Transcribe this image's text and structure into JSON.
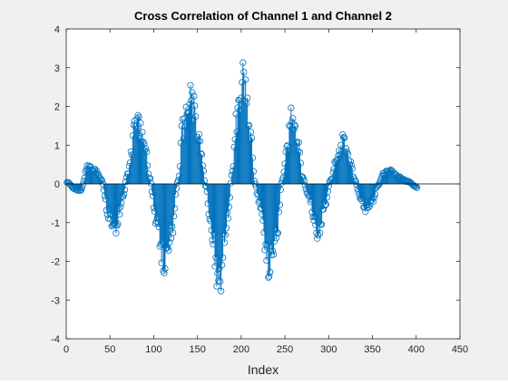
{
  "chart_data": {
    "type": "stem",
    "title": "Cross Correlation of Channel 1 and Channel 2",
    "xlabel": "Index",
    "ylabel": "",
    "xlim": [
      0,
      450
    ],
    "ylim": [
      -4,
      4
    ],
    "xticks": [
      0,
      50,
      100,
      150,
      200,
      250,
      300,
      350,
      400,
      450
    ],
    "yticks": [
      -4,
      -3,
      -2,
      -1,
      0,
      1,
      2,
      3,
      4
    ],
    "grid": false,
    "series_color": "#0072BD",
    "n_points": 401,
    "envelope_keypoints": [
      [
        1,
        0.05
      ],
      [
        10,
        -0.15
      ],
      [
        16,
        -0.2
      ],
      [
        25,
        0.5
      ],
      [
        33,
        0.4
      ],
      [
        40,
        0.15
      ],
      [
        48,
        -0.9
      ],
      [
        56,
        -1.35
      ],
      [
        65,
        -0.4
      ],
      [
        70,
        0.3
      ],
      [
        80,
        1.95
      ],
      [
        90,
        1.2
      ],
      [
        95,
        0.2
      ],
      [
        103,
        -1.1
      ],
      [
        112,
        -2.4
      ],
      [
        120,
        -1.5
      ],
      [
        128,
        0.1
      ],
      [
        133,
        1.7
      ],
      [
        143,
        2.6
      ],
      [
        152,
        1.3
      ],
      [
        160,
        -0.1
      ],
      [
        165,
        -1.3
      ],
      [
        175,
        -3.0
      ],
      [
        184,
        -1.1
      ],
      [
        190,
        0.4
      ],
      [
        195,
        2.0
      ],
      [
        203,
        3.2
      ],
      [
        210,
        1.6
      ],
      [
        216,
        0.0
      ],
      [
        220,
        -0.5
      ],
      [
        232,
        -2.45
      ],
      [
        240,
        -1.6
      ],
      [
        247,
        0.1
      ],
      [
        252,
        1.0
      ],
      [
        258,
        2.05
      ],
      [
        265,
        1.2
      ],
      [
        270,
        0.2
      ],
      [
        276,
        -0.3
      ],
      [
        288,
        -1.5
      ],
      [
        296,
        -0.6
      ],
      [
        302,
        0.1
      ],
      [
        310,
        0.8
      ],
      [
        317,
        1.3
      ],
      [
        324,
        0.7
      ],
      [
        330,
        0.1
      ],
      [
        336,
        -0.4
      ],
      [
        343,
        -0.75
      ],
      [
        350,
        -0.5
      ],
      [
        356,
        -0.05
      ],
      [
        363,
        0.3
      ],
      [
        370,
        0.4
      ],
      [
        380,
        0.2
      ],
      [
        390,
        0.08
      ],
      [
        401,
        -0.1
      ]
    ]
  }
}
